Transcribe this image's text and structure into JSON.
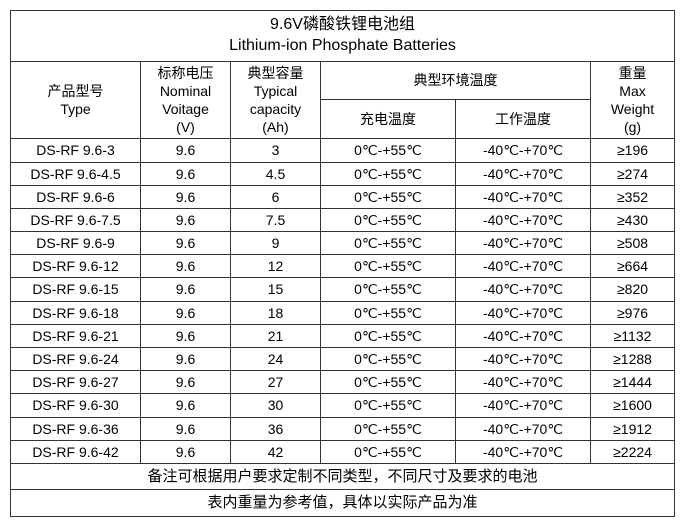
{
  "title_zh": "9.6V磷酸铁锂电池组",
  "title_en": "Lithium-ion Phosphate Batteries",
  "headers": {
    "type_zh": "产品型号",
    "type_en": "Type",
    "voltage_zh": "标称电压",
    "voltage_en1": "Nominal",
    "voltage_en2": "Voitage",
    "voltage_unit": "(V)",
    "capacity_zh": "典型容量",
    "capacity_en1": "Typical",
    "capacity_en2": "capacity",
    "capacity_unit": "(Ah)",
    "temp_zh": "典型环境温度",
    "charge_temp": "充电温度",
    "work_temp": "工作温度",
    "weight_zh": "重量",
    "weight_en1": "Max",
    "weight_en2": "Weight",
    "weight_unit": "(g)"
  },
  "rows": [
    {
      "type": "DS-RF 9.6-3",
      "v": "9.6",
      "ah": "3",
      "ct": "0℃-+55℃",
      "wt": "-40℃-+70℃",
      "w": "≥196"
    },
    {
      "type": "DS-RF 9.6-4.5",
      "v": "9.6",
      "ah": "4.5",
      "ct": "0℃-+55℃",
      "wt": "-40℃-+70℃",
      "w": "≥274"
    },
    {
      "type": "DS-RF 9.6-6",
      "v": "9.6",
      "ah": "6",
      "ct": "0℃-+55℃",
      "wt": "-40℃-+70℃",
      "w": "≥352"
    },
    {
      "type": "DS-RF 9.6-7.5",
      "v": "9.6",
      "ah": "7.5",
      "ct": "0℃-+55℃",
      "wt": "-40℃-+70℃",
      "w": "≥430"
    },
    {
      "type": "DS-RF 9.6-9",
      "v": "9.6",
      "ah": "9",
      "ct": "0℃-+55℃",
      "wt": "-40℃-+70℃",
      "w": "≥508"
    },
    {
      "type": "DS-RF 9.6-12",
      "v": "9.6",
      "ah": "12",
      "ct": "0℃-+55℃",
      "wt": "-40℃-+70℃",
      "w": "≥664"
    },
    {
      "type": "DS-RF 9.6-15",
      "v": "9.6",
      "ah": "15",
      "ct": "0℃-+55℃",
      "wt": "-40℃-+70℃",
      "w": "≥820"
    },
    {
      "type": "DS-RF 9.6-18",
      "v": "9.6",
      "ah": "18",
      "ct": "0℃-+55℃",
      "wt": "-40℃-+70℃",
      "w": "≥976"
    },
    {
      "type": "DS-RF 9.6-21",
      "v": "9.6",
      "ah": "21",
      "ct": "0℃-+55℃",
      "wt": "-40℃-+70℃",
      "w": "≥1132"
    },
    {
      "type": "DS-RF 9.6-24",
      "v": "9.6",
      "ah": "24",
      "ct": "0℃-+55℃",
      "wt": "-40℃-+70℃",
      "w": "≥1288"
    },
    {
      "type": "DS-RF 9.6-27",
      "v": "9.6",
      "ah": "27",
      "ct": "0℃-+55℃",
      "wt": "-40℃-+70℃",
      "w": "≥1444"
    },
    {
      "type": "DS-RF 9.6-30",
      "v": "9.6",
      "ah": "30",
      "ct": "0℃-+55℃",
      "wt": "-40℃-+70℃",
      "w": "≥1600"
    },
    {
      "type": "DS-RF 9.6-36",
      "v": "9.6",
      "ah": "36",
      "ct": "0℃-+55℃",
      "wt": "-40℃-+70℃",
      "w": "≥1912"
    },
    {
      "type": "DS-RF 9.6-42",
      "v": "9.6",
      "ah": "42",
      "ct": "0℃-+55℃",
      "wt": "-40℃-+70℃",
      "w": "≥2224"
    }
  ],
  "footer1": "备注可根据用户要求定制不同类型，不同尺寸及要求的电池",
  "footer2": "表内重量为参考值，具体以实际产品为准"
}
